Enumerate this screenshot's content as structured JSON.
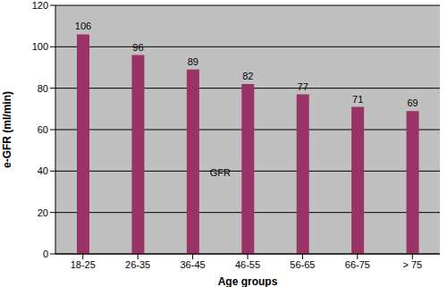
{
  "chart_data": {
    "type": "bar",
    "categories": [
      "18-25",
      "26-35",
      "36-45",
      "46-55",
      "56-65",
      "66-75",
      "> 75"
    ],
    "values": [
      106,
      96,
      89,
      82,
      77,
      71,
      69
    ],
    "color": "#993366",
    "ylim": [
      0,
      120
    ],
    "yticks": [
      0,
      20,
      40,
      60,
      80,
      100,
      120
    ],
    "grid": true,
    "data_labels": true,
    "x_label": "Age groups",
    "y_label": "e-GFR (ml/min)",
    "annotation": "GFR"
  }
}
